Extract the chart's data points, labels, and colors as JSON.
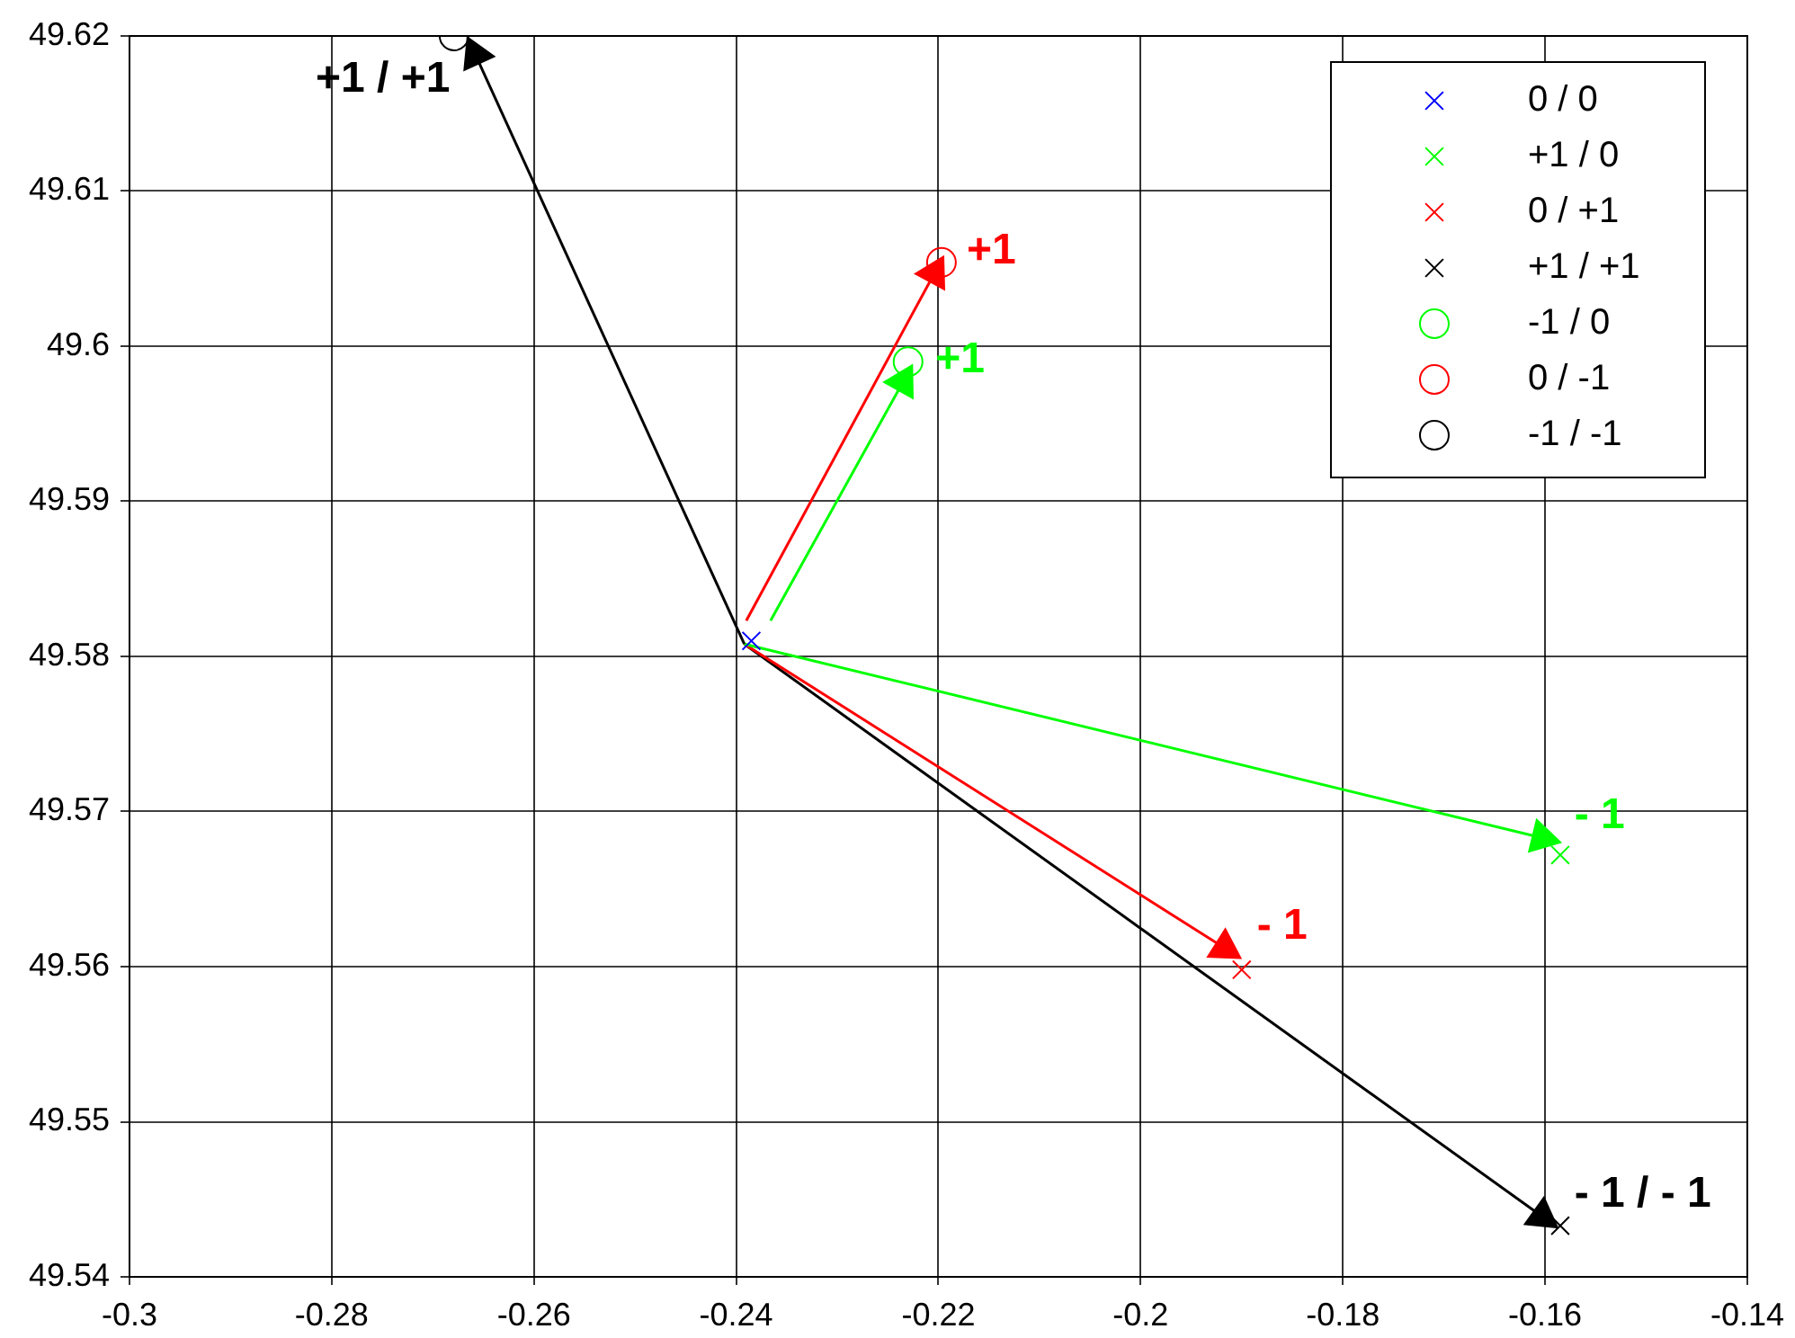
{
  "chart_data": {
    "type": "scatter",
    "legend": "top right",
    "grid": true,
    "xlim": [
      -0.3,
      -0.14
    ],
    "xticks": [
      -0.3,
      -0.28,
      -0.26,
      -0.24,
      -0.22,
      -0.2,
      -0.18,
      -0.16,
      -0.14
    ],
    "ylim": [
      49.54,
      49.62
    ],
    "yticks": [
      49.54,
      49.55,
      49.56,
      49.57,
      49.58,
      49.59,
      49.6,
      49.61,
      49.62
    ],
    "series": [
      {
        "name": "0 / 0",
        "color": "#0000ff",
        "marker": "cross",
        "x": [
          -0.2385
        ],
        "values": [
          49.581
        ]
      },
      {
        "name": "+1 / 0",
        "color": "#00ff00",
        "marker": "cross",
        "x": [
          -0.1585
        ],
        "values": [
          49.5672
        ]
      },
      {
        "name": "0 / +1",
        "color": "#ff0000",
        "marker": "cross",
        "x": [
          -0.19
        ],
        "values": [
          49.5598
        ]
      },
      {
        "name": "+1 / +1",
        "color": "#000000",
        "marker": "cross",
        "x": [
          -0.1585
        ],
        "values": [
          49.5433
        ]
      },
      {
        "name": "-1 / 0",
        "color": "#00ff00",
        "marker": "circle",
        "x": [
          -0.223
        ],
        "values": [
          49.599
        ]
      },
      {
        "name": "0 / -1",
        "color": "#ff0000",
        "marker": "circle",
        "x": [
          -0.2197
        ],
        "values": [
          49.6054
        ]
      },
      {
        "name": "-1 / -1",
        "color": "#000000",
        "marker": "circle",
        "x": [
          -0.2679
        ],
        "values": [
          49.62
        ]
      },
      {
        "type": "line",
        "color": "#000000",
        "marker": "triangle",
        "x": [
          -0.2392,
          -0.2658
        ],
        "values": [
          49.5808,
          49.6188
        ]
      },
      {
        "type": "line",
        "color": "#ff0000",
        "marker": "triangle",
        "x": [
          -0.239,
          -0.2204
        ],
        "values": [
          49.5823,
          49.6047
        ]
      },
      {
        "type": "line",
        "color": "#00ff00",
        "marker": "triangle",
        "x": [
          -0.2366,
          -0.2235
        ],
        "values": [
          49.5823,
          49.5977
        ]
      },
      {
        "type": "line",
        "color": "#00ff00",
        "marker": "triangle",
        "x": [
          -0.2392,
          -0.1603
        ],
        "values": [
          49.5808,
          49.5683
        ]
      },
      {
        "type": "line",
        "color": "#ff0000",
        "marker": "triangle",
        "x": [
          -0.2392,
          -0.1917
        ],
        "values": [
          49.5808,
          49.5612
        ]
      },
      {
        "type": "line",
        "color": "#000000",
        "marker": "triangle",
        "x": [
          -0.2392,
          -0.1603
        ],
        "values": [
          49.5808,
          49.5439
        ]
      }
    ],
    "annotations": [
      {
        "text": "+1 / +1",
        "x": -0.2658,
        "y": 49.6188
      },
      {
        "text": "+1",
        "x": -0.2204,
        "y": 49.6047
      },
      {
        "text": "+1",
        "x": -0.2235,
        "y": 49.5977
      },
      {
        "text": "- 1",
        "x": -0.1603,
        "y": 49.5683
      },
      {
        "text": "- 1",
        "x": -0.1917,
        "y": 49.5612
      },
      {
        "text": "- 1 / - 1",
        "x": -0.1603,
        "y": 49.5439
      }
    ]
  }
}
